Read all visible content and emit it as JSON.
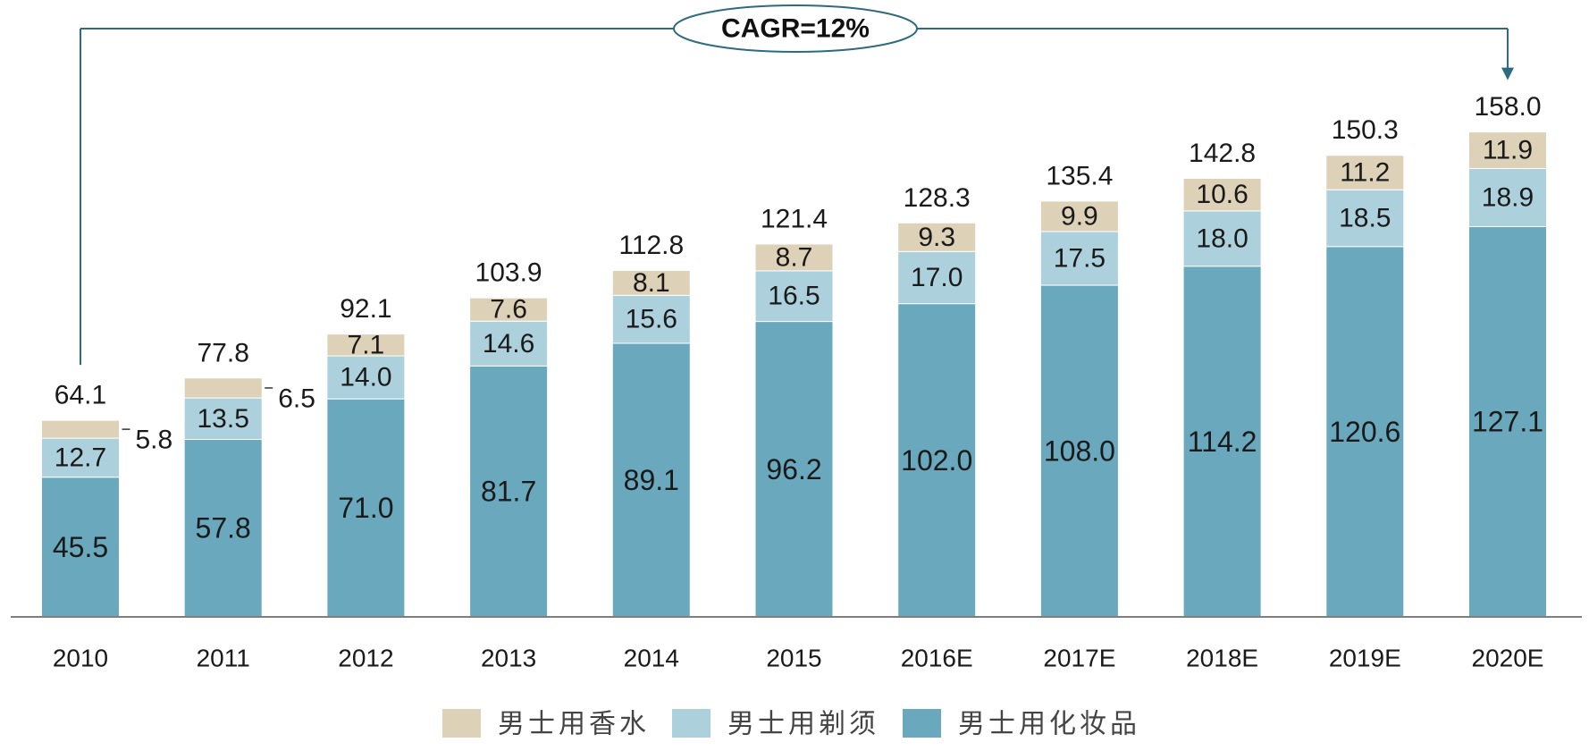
{
  "chart_data": {
    "type": "bar",
    "stacked": true,
    "categories": [
      "2010",
      "2011",
      "2012",
      "2013",
      "2014",
      "2015",
      "2016E",
      "2017E",
      "2018E",
      "2019E",
      "2020E"
    ],
    "series": [
      {
        "name": "男士用化妆品",
        "color": "#6aa8bd",
        "values": [
          45.5,
          57.8,
          71.0,
          81.7,
          89.1,
          96.2,
          102.0,
          108.0,
          114.2,
          120.6,
          127.1
        ]
      },
      {
        "name": "男士用剃须",
        "color": "#acd0dc",
        "values": [
          12.7,
          13.5,
          14.0,
          14.6,
          15.6,
          16.5,
          17.0,
          17.5,
          18.0,
          18.5,
          18.9
        ]
      },
      {
        "name": "男士用香水",
        "color": "#ddd1b7",
        "values": [
          5.8,
          6.5,
          7.1,
          7.6,
          8.1,
          8.7,
          9.3,
          9.9,
          10.6,
          11.2,
          11.9
        ]
      }
    ],
    "totals": [
      64.1,
      77.8,
      92.1,
      103.9,
      112.8,
      121.4,
      128.3,
      135.4,
      142.8,
      150.3,
      158.0
    ],
    "value_labels": {
      "cosmetics": [
        "45.5",
        "57.8",
        "71.0",
        "81.7",
        "89.1",
        "96.2",
        "102.0",
        "108.0",
        "114.2",
        "120.6",
        "127.1"
      ],
      "shaving": [
        "12.7",
        "13.5",
        "14.0",
        "14.6",
        "15.6",
        "16.5",
        "17.0",
        "17.5",
        "18.0",
        "18.5",
        "18.9"
      ],
      "fragrance": [
        "5.8",
        "6.5",
        "7.1",
        "7.6",
        "8.1",
        "8.7",
        "9.3",
        "9.9",
        "10.6",
        "11.2",
        "11.9"
      ],
      "totals": [
        "64.1",
        "77.8",
        "92.1",
        "103.9",
        "112.8",
        "121.4",
        "128.3",
        "135.4",
        "142.8",
        "150.3",
        "158.0"
      ]
    },
    "annotation": "CAGR=12%",
    "legend": {
      "position": "bottom-center",
      "order": [
        "男士用香水",
        "男士用剃须",
        "男士用化妆品"
      ]
    },
    "ylim": [
      0,
      160
    ],
    "grid": false,
    "title": "",
    "xlabel": "",
    "ylabel": ""
  }
}
